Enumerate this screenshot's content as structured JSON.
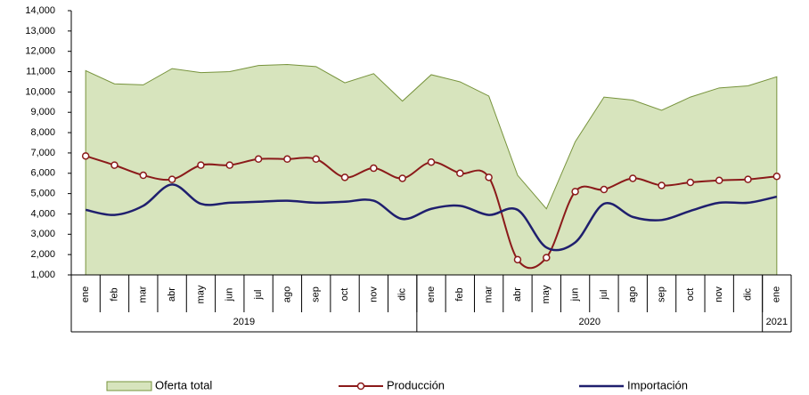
{
  "chart_data": {
    "type": "line",
    "categories": [
      "ene",
      "feb",
      "mar",
      "abr",
      "may",
      "jun",
      "jul",
      "ago",
      "sep",
      "oct",
      "nov",
      "dic",
      "ene",
      "feb",
      "mar",
      "abr",
      "may",
      "jun",
      "jul",
      "ago",
      "sep",
      "oct",
      "nov",
      "dic",
      "ene"
    ],
    "x_groups": [
      "2019",
      "2020",
      "2021"
    ],
    "ylim": [
      1000,
      14000
    ],
    "yticks": [
      {
        "value": 1000,
        "label": "1,000"
      },
      {
        "value": 2000,
        "label": "2,000"
      },
      {
        "value": 3000,
        "label": "3,000"
      },
      {
        "value": 4000,
        "label": "4,000"
      },
      {
        "value": 5000,
        "label": "5,000"
      },
      {
        "value": 6000,
        "label": "6,000"
      },
      {
        "value": 7000,
        "label": "7,000"
      },
      {
        "value": 8000,
        "label": "8,000"
      },
      {
        "value": 9000,
        "label": "9,000"
      },
      {
        "value": 10000,
        "label": "10,000"
      },
      {
        "value": 11000,
        "label": "11,000"
      },
      {
        "value": 12000,
        "label": "12,000"
      },
      {
        "value": 13000,
        "label": "13,000"
      },
      {
        "value": 14000,
        "label": "14,000"
      }
    ],
    "series": [
      {
        "name": "Oferta total",
        "kind": "area",
        "color": "#d7e4bd",
        "edge_color": "#77933c",
        "values": [
          11050,
          10400,
          10350,
          11150,
          10950,
          11000,
          11300,
          11350,
          11250,
          10450,
          10900,
          9550,
          10850,
          10500,
          9800,
          5900,
          4250,
          7550,
          9750,
          9600,
          9100,
          9750,
          10200,
          10300,
          10750
        ]
      },
      {
        "name": "Producción",
        "kind": "marker-line",
        "color": "#8b1a1a",
        "values": [
          6850,
          6400,
          5900,
          5700,
          6400,
          6400,
          6700,
          6700,
          6700,
          5800,
          6250,
          5750,
          6550,
          6000,
          5800,
          1750,
          1850,
          5100,
          5200,
          5750,
          5400,
          5550,
          5650,
          5700,
          5850
        ]
      },
      {
        "name": "Importación",
        "kind": "line",
        "color": "#1f1f6e",
        "values": [
          4200,
          3950,
          4400,
          5450,
          4500,
          4550,
          4600,
          4650,
          4550,
          4600,
          4650,
          3750,
          4250,
          4400,
          3950,
          4200,
          2350,
          2600,
          4500,
          3850,
          3700,
          4150,
          4550,
          4550,
          4850
        ]
      }
    ],
    "legend": "bottom"
  }
}
